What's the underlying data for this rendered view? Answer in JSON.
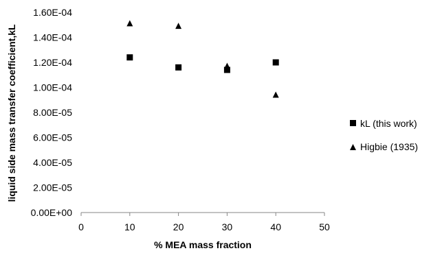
{
  "chart_data": {
    "type": "scatter",
    "title": "",
    "xlabel": "% MEA mass fraction",
    "ylabel": "liquid side mass transfer coefficient,kL",
    "xlim": [
      0,
      50
    ],
    "ylim": [
      0,
      0.00016
    ],
    "x_ticks": [
      "0",
      "10",
      "20",
      "30",
      "40",
      "50"
    ],
    "y_ticks": [
      "0.00E+00",
      "2.00E-05",
      "4.00E-05",
      "6.00E-05",
      "8.00E-05",
      "1.00E-04",
      "1.20E-04",
      "1.40E-04",
      "1.60E-04"
    ],
    "grid": false,
    "legend_position": "right",
    "series": [
      {
        "name": "kL (this work)",
        "marker": "square",
        "color": "#000000",
        "x": [
          10,
          20,
          30,
          40
        ],
        "y": [
          0.000124,
          0.000116,
          0.000114,
          0.00012
        ]
      },
      {
        "name": "Higbie (1935)",
        "marker": "triangle",
        "color": "#000000",
        "x": [
          10,
          20,
          30,
          40
        ],
        "y": [
          0.000151,
          0.000149,
          0.000117,
          9.4e-05
        ]
      }
    ]
  }
}
